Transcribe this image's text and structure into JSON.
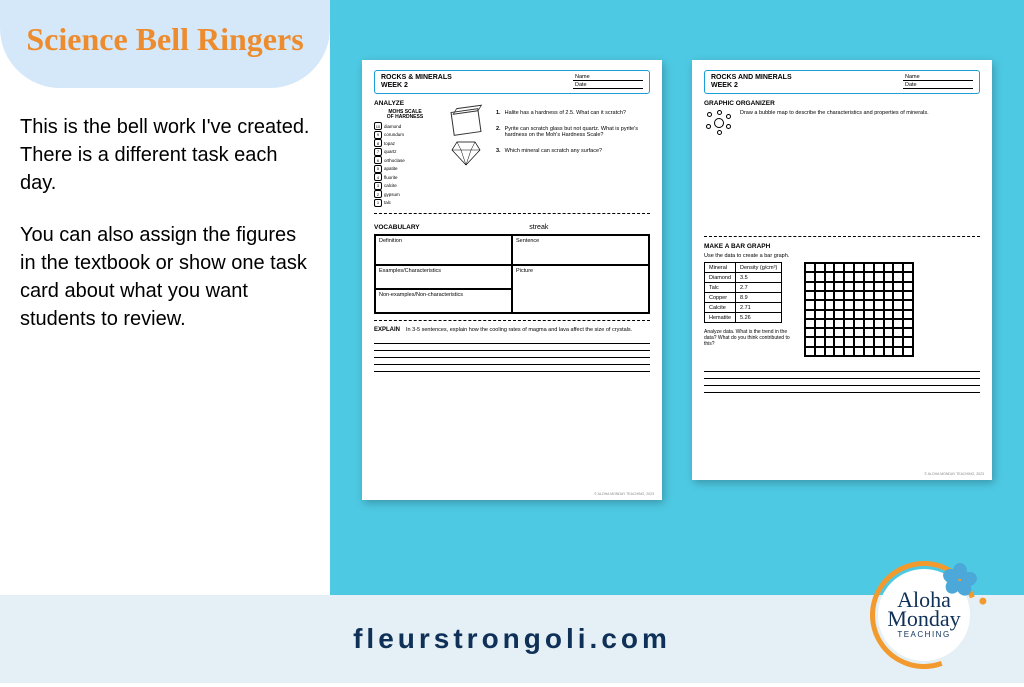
{
  "title": "Science Bell Ringers",
  "body": {
    "p1": "This is the bell work I've created.  There is a different task each day.",
    "p2": "You can also assign the figures in the textbook or show one task card about what you want students to review."
  },
  "footer_url": "fleurstrongoli.com",
  "logo": {
    "line1": "Aloha",
    "line2": "Monday",
    "sub": "TEACHING"
  },
  "worksheet1": {
    "header_title": "ROCKS & MINERALS\nWEEK 2",
    "name_label": "Name",
    "date_label": "Date",
    "analyze_label": "ANALYZE",
    "mohs_title": "MOHS SCALE\nOF HARDNESS",
    "mohs": [
      {
        "n": "1",
        "label": "talc"
      },
      {
        "n": "2",
        "label": "gypsum"
      },
      {
        "n": "3",
        "label": "calcite"
      },
      {
        "n": "4",
        "label": "fluorite"
      },
      {
        "n": "5",
        "label": "apatite"
      },
      {
        "n": "6",
        "label": "orthoclase"
      },
      {
        "n": "7",
        "label": "quartz"
      },
      {
        "n": "8",
        "label": "topaz"
      },
      {
        "n": "9",
        "label": "corundum"
      },
      {
        "n": "10",
        "label": "diamond"
      }
    ],
    "q1": "Halite has a hardness of 2.5.   What can it scratch?",
    "q2": "Pyrite can scratch glass but not quartz. What is pyrite's hardness on the Moh's Hardness Scale?",
    "q3": "Which mineral can scratch any surface?",
    "vocab_label": "VOCABULARY",
    "vocab_word": "streak",
    "vocab_cells": {
      "def": "Definition",
      "sent": "Sentence",
      "ex": "Examples/Characteristics",
      "pic": "Picture",
      "non": "Non-examples/Non-characteristics"
    },
    "explain_label": "EXPLAIN",
    "explain_prompt": "In 3-5 sentences, explain how the cooling rates of magma and lava affect the size of crystals.",
    "copyright": "© ALOHA MONDAY TEACHING, 2023"
  },
  "worksheet2": {
    "header_title": "ROCKS AND MINERALS\nWEEK 2",
    "name_label": "Name",
    "date_label": "Date",
    "go_label": "GRAPHIC ORGANIZER",
    "go_prompt": "Draw a bubble map to describe the characteristics and properties of minerals.",
    "graph_label": "MAKE A BAR GRAPH",
    "graph_instr": "Use the data to create a bar graph.",
    "table": {
      "col1": "Mineral",
      "col2": "Density (g/cm³)",
      "rows": [
        {
          "m": "Diamond",
          "d": "3.5"
        },
        {
          "m": "Talc",
          "d": "2.7"
        },
        {
          "m": "Copper",
          "d": "8.9"
        },
        {
          "m": "Calcite",
          "d": "2.71"
        },
        {
          "m": "Hematite",
          "d": "5.26"
        }
      ]
    },
    "grid": {
      "cols": 11,
      "rows": 10
    },
    "analyze_prompt": "Analyze data. What is the trend in the data? What do you think contributed to this?",
    "copyright": "© ALOHA MONDAY TEACHING, 2023"
  },
  "colors": {
    "title": "#ed8c2f",
    "bubble_bg": "#d4e8f9",
    "photo_bg": "#4ec9e3",
    "footer_bg": "#e4f0f5",
    "footer_text": "#0f3057",
    "ws_border": "#1a9fd9",
    "logo_ring": "#f29a2e",
    "hibiscus": "#4ba8d8"
  }
}
